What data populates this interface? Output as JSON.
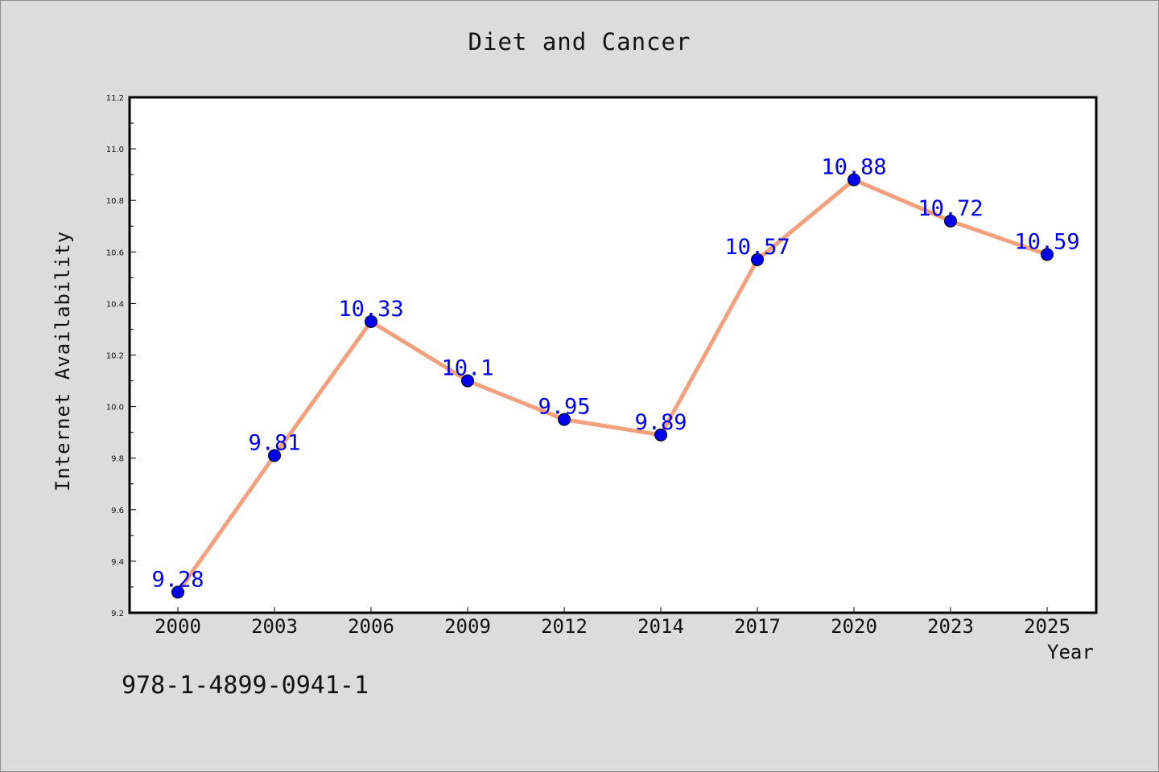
{
  "figure": {
    "footnote": "978-1-4899-0941-1",
    "background_color": "#dcdcdc"
  },
  "chart_data": {
    "type": "line",
    "title": "Diet and Cancer",
    "xlabel": "Year",
    "ylabel": "Internet Availability",
    "categories": [
      "2000",
      "2003",
      "2006",
      "2009",
      "2012",
      "2014",
      "2017",
      "2020",
      "2023",
      "2025"
    ],
    "series": [
      {
        "values": [
          9.28,
          9.81,
          10.33,
          10.1,
          9.95,
          9.89,
          10.57,
          10.88,
          10.72,
          10.59
        ],
        "line_color": "#f4a07c",
        "marker_color": "#0000ee",
        "label_color": "#0000ee"
      }
    ],
    "data_labels": [
      "9.28",
      "9.81",
      "10.33",
      "10.1",
      "9.95",
      "9.89",
      "10.57",
      "10.88",
      "10.72",
      "10.59"
    ],
    "ylim": [
      9.2,
      11.2
    ],
    "yticks": [
      "9.2",
      "9.4",
      "9.6",
      "9.8",
      "10.0",
      "10.2",
      "10.4",
      "10.6",
      "10.8",
      "11.0",
      "11.2"
    ],
    "grid": false,
    "legend": "none"
  }
}
